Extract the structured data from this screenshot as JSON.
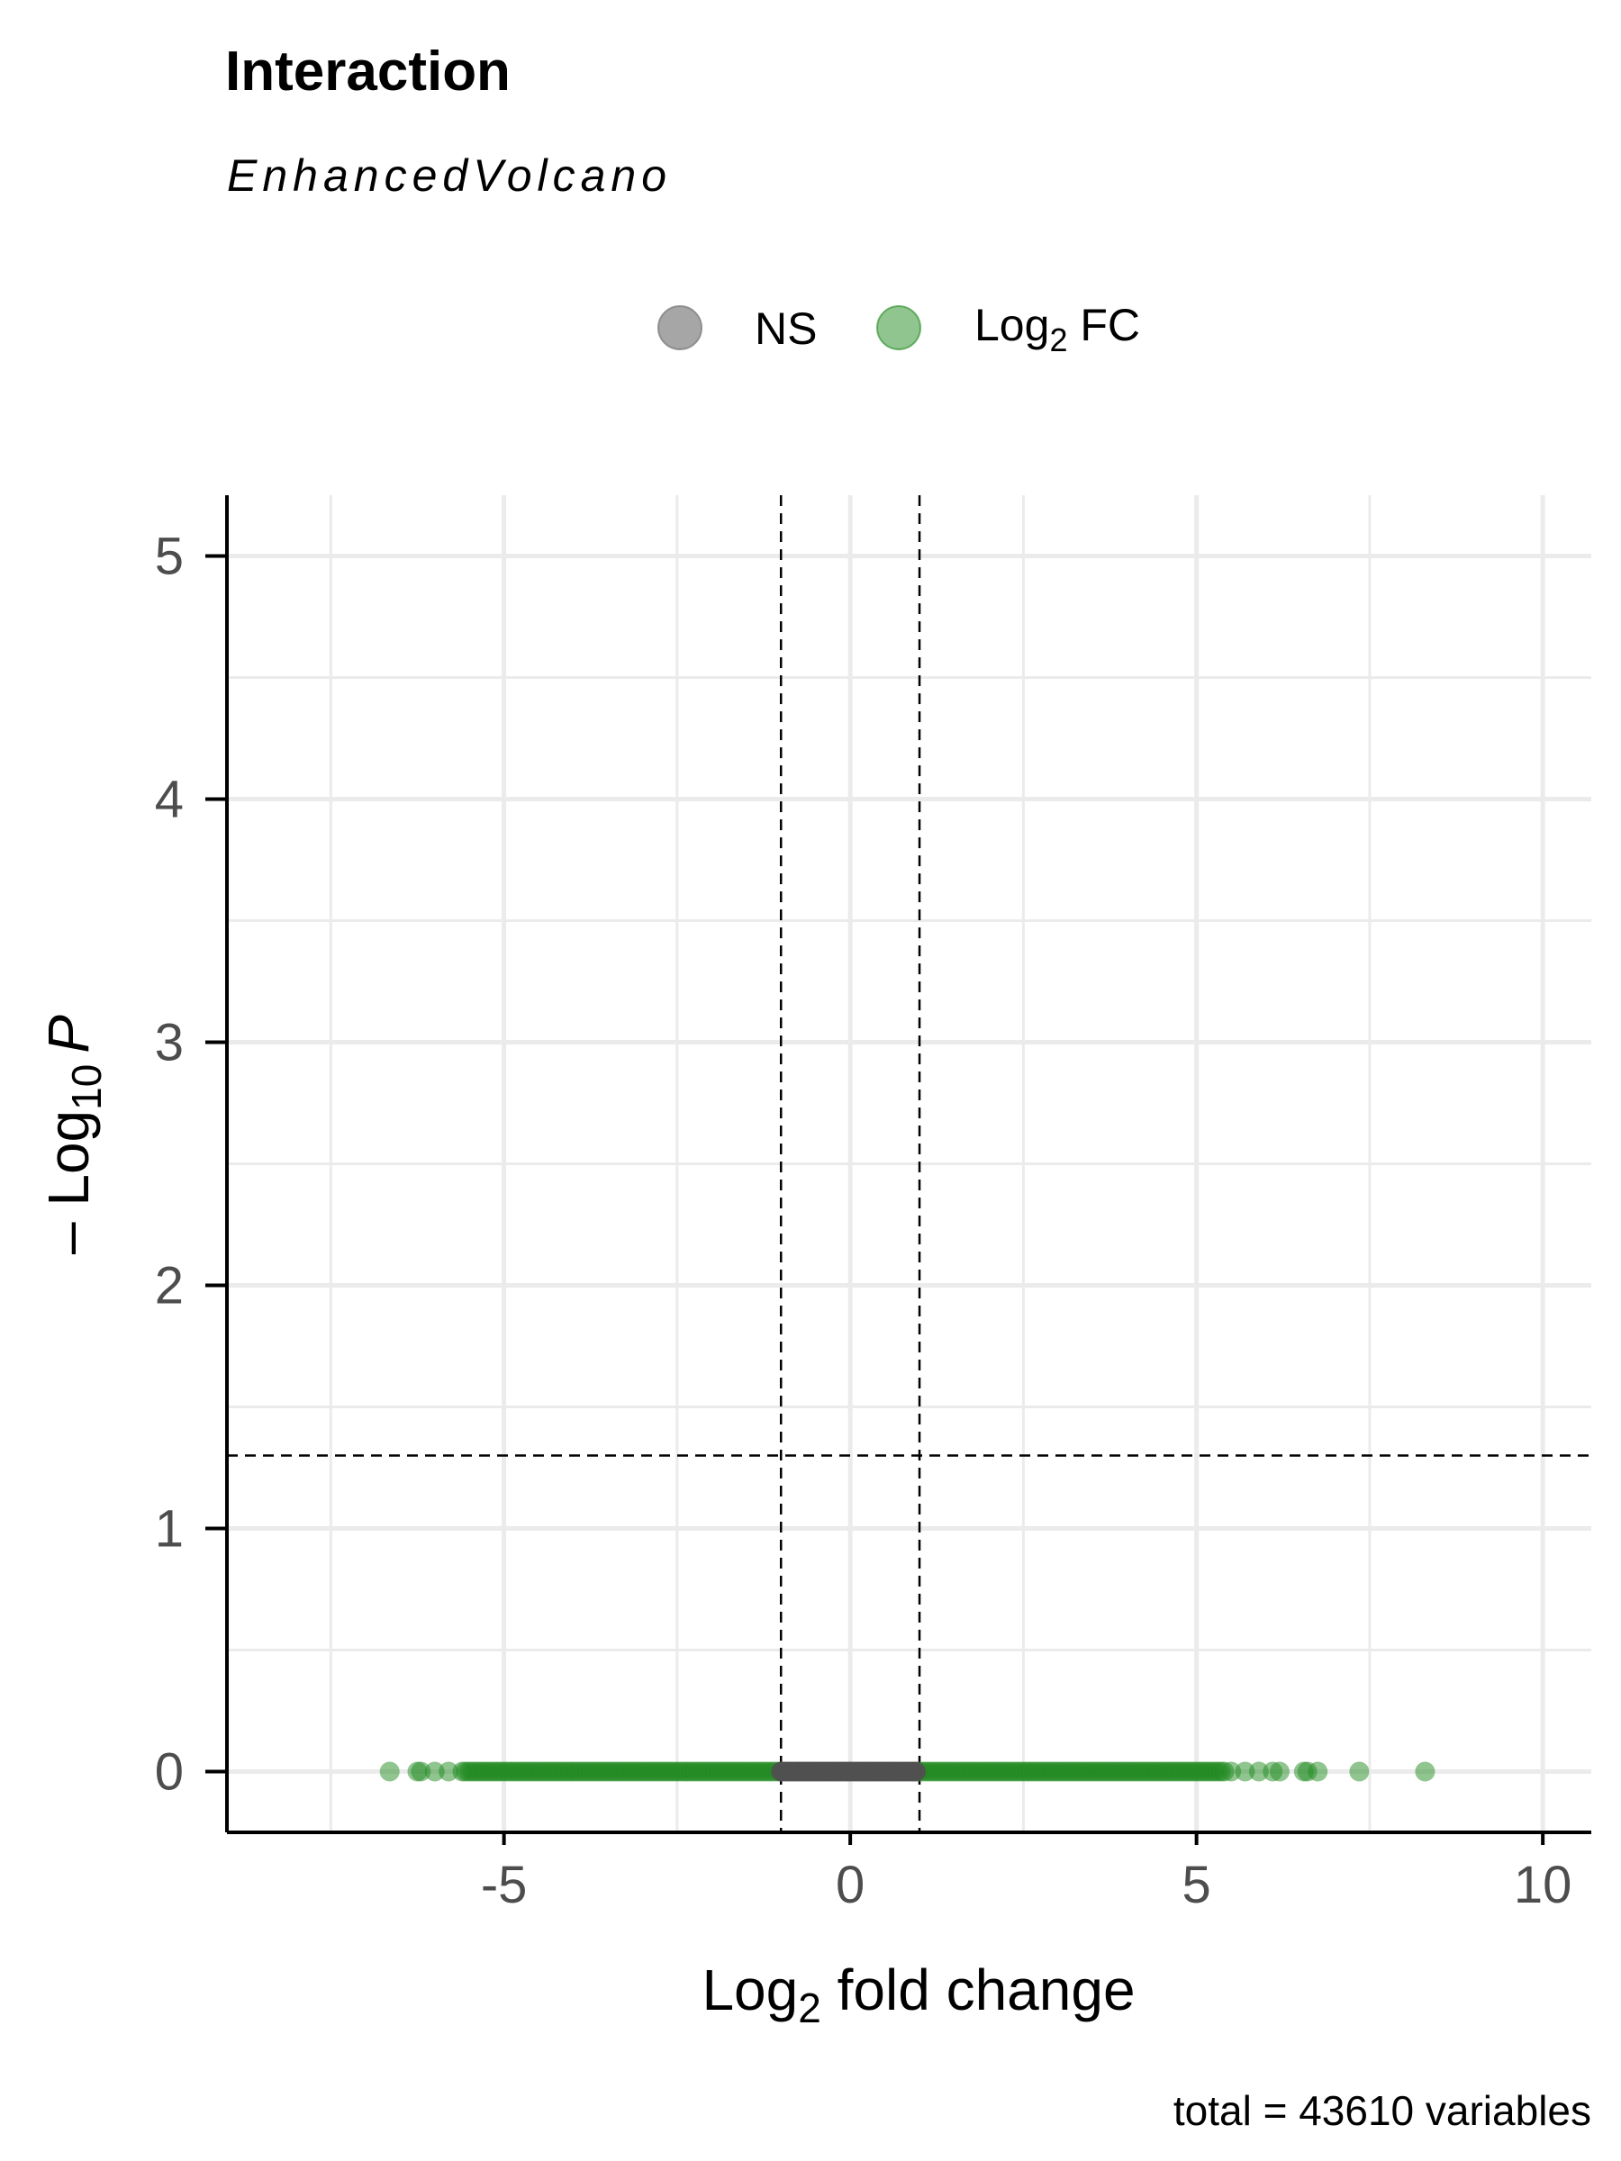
{
  "chart_data": {
    "type": "scatter",
    "title": "Interaction",
    "subtitle": "EnhancedVolcano",
    "caption": "total = 43610 variables",
    "xlabel": {
      "base": "Log",
      "sub": "2",
      "rest": " fold change"
    },
    "ylabel": {
      "prefix": "– Log",
      "sub": "10",
      "rest": "P"
    },
    "xlim": [
      -9,
      10.7
    ],
    "ylim": [
      -0.25,
      5.25
    ],
    "x_ticks": [
      -5,
      0,
      5,
      10
    ],
    "x_tick_labels": [
      "-5",
      "0",
      "5",
      "10"
    ],
    "y_ticks": [
      0,
      1,
      2,
      3,
      4,
      5
    ],
    "y_tick_labels": [
      "0",
      "1",
      "2",
      "3",
      "4",
      "5"
    ],
    "grid": true,
    "legend": {
      "position": "top",
      "items": [
        {
          "name": "NS",
          "color": "#808080"
        },
        {
          "name_base": "Log",
          "name_sub": "2",
          "name_rest": " FC",
          "color": "#228b22"
        }
      ]
    },
    "thresholds": {
      "fc_cutoff": [
        -1,
        1
      ],
      "p_cutoff_neglog10": 1.3
    },
    "series": [
      {
        "name": "NS",
        "color": "#505050",
        "x_range": [
          -1,
          1
        ],
        "y": 0
      },
      {
        "name": "Log2 FC",
        "color": "#228b22",
        "band_ranges": [
          [
            -5.6,
            -1
          ],
          [
            1,
            5.4
          ]
        ],
        "points": [
          {
            "x": -6.65,
            "y": 0
          },
          {
            "x": -6.25,
            "y": 0
          },
          {
            "x": -6.2,
            "y": 0
          },
          {
            "x": -6.0,
            "y": 0
          },
          {
            "x": -5.8,
            "y": 0
          },
          {
            "x": 5.5,
            "y": 0
          },
          {
            "x": 5.7,
            "y": 0
          },
          {
            "x": 5.9,
            "y": 0
          },
          {
            "x": 6.1,
            "y": 0
          },
          {
            "x": 6.2,
            "y": 0
          },
          {
            "x": 6.55,
            "y": 0
          },
          {
            "x": 6.6,
            "y": 0
          },
          {
            "x": 6.75,
            "y": 0
          },
          {
            "x": 7.35,
            "y": 0
          },
          {
            "x": 8.3,
            "y": 0
          }
        ]
      }
    ]
  }
}
